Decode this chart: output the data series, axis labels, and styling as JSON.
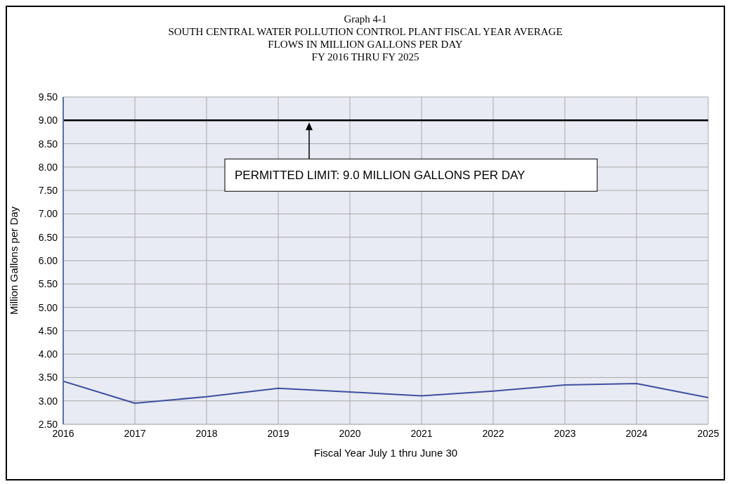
{
  "chart_data": {
    "type": "line",
    "title": "Graph 4-1\nSOUTH CENTRAL WATER POLLUTION CONTROL PLANT FISCAL YEAR AVERAGE\nFLOWS IN MILLION GALLONS PER DAY\nFY 2016 THRU FY 2025",
    "xlabel": "Fiscal Year July 1 thru June 30",
    "ylabel": "Million Gallons per Day",
    "x": [
      2016,
      2017,
      2018,
      2019,
      2020,
      2021,
      2022,
      2023,
      2024,
      2025
    ],
    "series": [
      {
        "color": "#3f4fa0",
        "values": [
          3.42,
          2.95,
          3.09,
          3.27,
          3.19,
          3.11,
          3.21,
          3.34,
          3.37,
          3.07
        ]
      }
    ],
    "xlim": [
      2016,
      2025
    ],
    "xticks": [
      2016,
      2017,
      2018,
      2019,
      2020,
      2021,
      2022,
      2023,
      2024,
      2025
    ],
    "ylim": [
      2.5,
      9.5
    ],
    "yticks": [
      {
        "value": 2.5,
        "label": "2.50"
      },
      {
        "value": 3,
        "label": "3.00"
      },
      {
        "value": 3.5,
        "label": "3.50"
      },
      {
        "value": 4,
        "label": "4.00"
      },
      {
        "value": 4.5,
        "label": "4.50"
      },
      {
        "value": 5,
        "label": "5.00"
      },
      {
        "value": 5.5,
        "label": "5.50"
      },
      {
        "value": 6,
        "label": "6.00"
      },
      {
        "value": 6.5,
        "label": "6.50"
      },
      {
        "value": 7,
        "label": "7.00"
      },
      {
        "value": 7.5,
        "label": "7.50"
      },
      {
        "value": 8,
        "label": "8.00"
      },
      {
        "value": 8.5,
        "label": "8.50"
      },
      {
        "value": 9,
        "label": "9.00"
      },
      {
        "value": 9.5,
        "label": "9.50"
      }
    ],
    "ref_lines": [
      {
        "axis": "y",
        "value": 9.0,
        "label": "PERMITTED LIMIT:  9.0 MILLION GALLONS PER DAY",
        "color": "#000000"
      }
    ],
    "grid": true,
    "legend": false,
    "marker": "none",
    "line_style": "solid"
  }
}
